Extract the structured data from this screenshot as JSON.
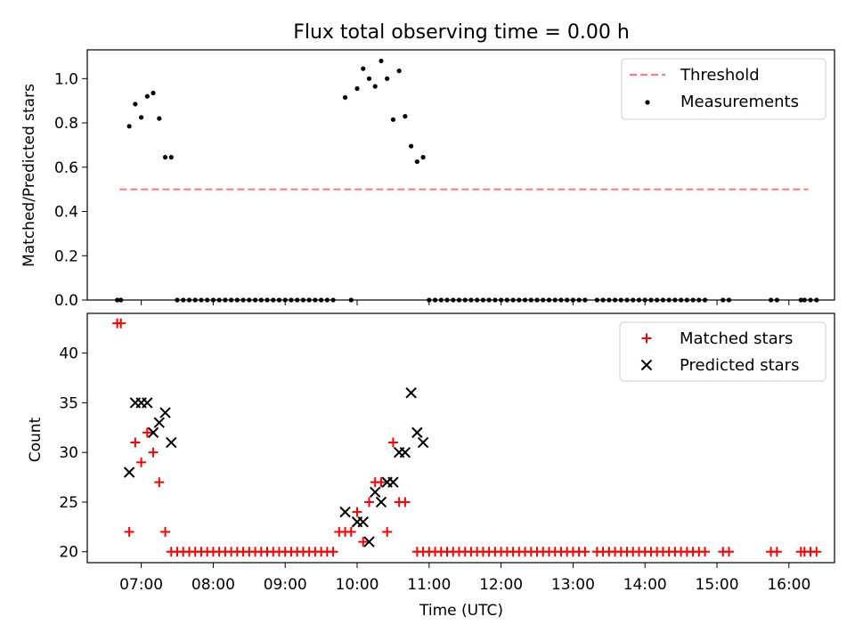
{
  "figure": {
    "title": "Flux total observing time = 0.00 h"
  },
  "colors": {
    "matched": "#ff0000",
    "predicted": "#000000",
    "threshold": "#ff7f7f",
    "measurements": "#000000"
  },
  "chart_data": [
    {
      "type": "scatter",
      "title": "Flux total observing time = 0.00 h",
      "xlabel": "",
      "ylabel": "Matched/Predicted stars",
      "ylim": [
        0.0,
        1.13
      ],
      "yticks": [
        0.0,
        0.2,
        0.4,
        0.6,
        0.8,
        1.0
      ],
      "yticklabels": [
        "0.0",
        "0.2",
        "0.4",
        "0.6",
        "0.8",
        "1.0"
      ],
      "xtick_labels_shown": false,
      "legend": {
        "placement": "top-right",
        "entries": [
          "Threshold",
          "Measurements"
        ]
      },
      "series": [
        {
          "name": "Threshold",
          "kind": "dashed-line",
          "x_start": "06:42",
          "x_end": "16:16",
          "value": 0.5
        },
        {
          "name": "Measurements",
          "kind": "dots",
          "points": [
            [
              "06:40",
              0
            ],
            [
              "06:43",
              0
            ],
            [
              "06:50",
              0.785
            ],
            [
              "06:55",
              0.885
            ],
            [
              "07:00",
              0.825
            ],
            [
              "07:05",
              0.92
            ],
            [
              "07:10",
              0.935
            ],
            [
              "07:15",
              0.82
            ],
            [
              "07:20",
              0.645
            ],
            [
              "07:25",
              0.645
            ],
            [
              "07:30",
              0
            ],
            [
              "07:35",
              0
            ],
            [
              "07:40",
              0
            ],
            [
              "07:45",
              0
            ],
            [
              "07:50",
              0
            ],
            [
              "07:55",
              0
            ],
            [
              "08:00",
              0
            ],
            [
              "08:05",
              0
            ],
            [
              "08:10",
              0
            ],
            [
              "08:15",
              0
            ],
            [
              "08:20",
              0
            ],
            [
              "08:25",
              0
            ],
            [
              "08:30",
              0
            ],
            [
              "08:35",
              0
            ],
            [
              "08:40",
              0
            ],
            [
              "08:45",
              0
            ],
            [
              "08:50",
              0
            ],
            [
              "08:55",
              0
            ],
            [
              "09:00",
              0
            ],
            [
              "09:05",
              0
            ],
            [
              "09:10",
              0
            ],
            [
              "09:15",
              0
            ],
            [
              "09:20",
              0
            ],
            [
              "09:25",
              0
            ],
            [
              "09:30",
              0
            ],
            [
              "09:35",
              0
            ],
            [
              "09:40",
              0
            ],
            [
              "09:50",
              0.915
            ],
            [
              "09:55",
              0
            ],
            [
              "10:00",
              0.955
            ],
            [
              "10:05",
              1.045
            ],
            [
              "10:10",
              1.0
            ],
            [
              "10:15",
              0.965
            ],
            [
              "10:20",
              1.08
            ],
            [
              "10:25",
              1.0
            ],
            [
              "10:30",
              0.815
            ],
            [
              "10:35",
              1.035
            ],
            [
              "10:40",
              0.83
            ],
            [
              "10:45",
              0.695
            ],
            [
              "10:50",
              0.625
            ],
            [
              "10:55",
              0.645
            ],
            [
              "11:00",
              0
            ],
            [
              "11:05",
              0
            ],
            [
              "11:10",
              0
            ],
            [
              "11:15",
              0
            ],
            [
              "11:20",
              0
            ],
            [
              "11:25",
              0
            ],
            [
              "11:30",
              0
            ],
            [
              "11:35",
              0
            ],
            [
              "11:40",
              0
            ],
            [
              "11:45",
              0
            ],
            [
              "11:50",
              0
            ],
            [
              "11:55",
              0
            ],
            [
              "12:00",
              0
            ],
            [
              "12:05",
              0
            ],
            [
              "12:10",
              0
            ],
            [
              "12:15",
              0
            ],
            [
              "12:20",
              0
            ],
            [
              "12:25",
              0
            ],
            [
              "12:30",
              0
            ],
            [
              "12:35",
              0
            ],
            [
              "12:40",
              0
            ],
            [
              "12:45",
              0
            ],
            [
              "12:50",
              0
            ],
            [
              "12:55",
              0
            ],
            [
              "13:00",
              0
            ],
            [
              "13:05",
              0
            ],
            [
              "13:10",
              0
            ],
            [
              "13:20",
              0
            ],
            [
              "13:25",
              0
            ],
            [
              "13:30",
              0
            ],
            [
              "13:35",
              0
            ],
            [
              "13:40",
              0
            ],
            [
              "13:45",
              0
            ],
            [
              "13:50",
              0
            ],
            [
              "13:55",
              0
            ],
            [
              "14:00",
              0
            ],
            [
              "14:05",
              0
            ],
            [
              "14:10",
              0
            ],
            [
              "14:15",
              0
            ],
            [
              "14:20",
              0
            ],
            [
              "14:25",
              0
            ],
            [
              "14:30",
              0
            ],
            [
              "14:35",
              0
            ],
            [
              "14:40",
              0
            ],
            [
              "14:45",
              0
            ],
            [
              "14:50",
              0
            ],
            [
              "15:05",
              0
            ],
            [
              "15:10",
              0
            ],
            [
              "15:45",
              0
            ],
            [
              "15:50",
              0
            ],
            [
              "16:10",
              0
            ],
            [
              "16:13",
              0
            ],
            [
              "16:18",
              0
            ],
            [
              "16:23",
              0
            ]
          ]
        }
      ]
    },
    {
      "type": "scatter",
      "title": "",
      "xlabel": "Time (UTC)",
      "ylabel": "Count",
      "xlim": [
        "06:15",
        "16:38"
      ],
      "ylim": [
        18.9,
        44.0
      ],
      "yticks": [
        20,
        25,
        30,
        35,
        40
      ],
      "yticklabels": [
        "20",
        "25",
        "30",
        "35",
        "40"
      ],
      "xticks": [
        "07:00",
        "08:00",
        "09:00",
        "10:00",
        "11:00",
        "12:00",
        "13:00",
        "14:00",
        "15:00",
        "16:00"
      ],
      "legend": {
        "placement": "top-right",
        "entries": [
          "Matched stars",
          "Predicted stars"
        ]
      },
      "series": [
        {
          "name": "Matched stars",
          "marker": "+",
          "points": [
            [
              "06:40",
              43
            ],
            [
              "06:43",
              43
            ],
            [
              "06:50",
              22
            ],
            [
              "06:55",
              31
            ],
            [
              "07:00",
              29
            ],
            [
              "07:05",
              32
            ],
            [
              "07:10",
              30
            ],
            [
              "07:15",
              27
            ],
            [
              "07:20",
              22
            ],
            [
              "07:25",
              20
            ],
            [
              "07:30",
              20
            ],
            [
              "07:35",
              20
            ],
            [
              "07:40",
              20
            ],
            [
              "07:45",
              20
            ],
            [
              "07:50",
              20
            ],
            [
              "07:55",
              20
            ],
            [
              "08:00",
              20
            ],
            [
              "08:05",
              20
            ],
            [
              "08:10",
              20
            ],
            [
              "08:15",
              20
            ],
            [
              "08:20",
              20
            ],
            [
              "08:25",
              20
            ],
            [
              "08:30",
              20
            ],
            [
              "08:35",
              20
            ],
            [
              "08:40",
              20
            ],
            [
              "08:45",
              20
            ],
            [
              "08:50",
              20
            ],
            [
              "08:55",
              20
            ],
            [
              "09:00",
              20
            ],
            [
              "09:05",
              20
            ],
            [
              "09:10",
              20
            ],
            [
              "09:15",
              20
            ],
            [
              "09:20",
              20
            ],
            [
              "09:25",
              20
            ],
            [
              "09:30",
              20
            ],
            [
              "09:35",
              20
            ],
            [
              "09:40",
              20
            ],
            [
              "09:45",
              22
            ],
            [
              "09:50",
              22
            ],
            [
              "09:55",
              22
            ],
            [
              "10:00",
              24
            ],
            [
              "10:05",
              21
            ],
            [
              "10:10",
              25
            ],
            [
              "10:15",
              27
            ],
            [
              "10:20",
              27
            ],
            [
              "10:25",
              22
            ],
            [
              "10:30",
              31
            ],
            [
              "10:35",
              25
            ],
            [
              "10:40",
              25
            ],
            [
              "10:50",
              20
            ],
            [
              "10:55",
              20
            ],
            [
              "11:00",
              20
            ],
            [
              "11:05",
              20
            ],
            [
              "11:10",
              20
            ],
            [
              "11:15",
              20
            ],
            [
              "11:20",
              20
            ],
            [
              "11:25",
              20
            ],
            [
              "11:30",
              20
            ],
            [
              "11:35",
              20
            ],
            [
              "11:40",
              20
            ],
            [
              "11:45",
              20
            ],
            [
              "11:50",
              20
            ],
            [
              "11:55",
              20
            ],
            [
              "12:00",
              20
            ],
            [
              "12:05",
              20
            ],
            [
              "12:10",
              20
            ],
            [
              "12:15",
              20
            ],
            [
              "12:20",
              20
            ],
            [
              "12:25",
              20
            ],
            [
              "12:30",
              20
            ],
            [
              "12:35",
              20
            ],
            [
              "12:40",
              20
            ],
            [
              "12:45",
              20
            ],
            [
              "12:50",
              20
            ],
            [
              "12:55",
              20
            ],
            [
              "13:00",
              20
            ],
            [
              "13:05",
              20
            ],
            [
              "13:10",
              20
            ],
            [
              "13:20",
              20
            ],
            [
              "13:25",
              20
            ],
            [
              "13:30",
              20
            ],
            [
              "13:35",
              20
            ],
            [
              "13:40",
              20
            ],
            [
              "13:45",
              20
            ],
            [
              "13:50",
              20
            ],
            [
              "13:55",
              20
            ],
            [
              "14:00",
              20
            ],
            [
              "14:05",
              20
            ],
            [
              "14:10",
              20
            ],
            [
              "14:15",
              20
            ],
            [
              "14:20",
              20
            ],
            [
              "14:25",
              20
            ],
            [
              "14:30",
              20
            ],
            [
              "14:35",
              20
            ],
            [
              "14:40",
              20
            ],
            [
              "14:45",
              20
            ],
            [
              "14:50",
              20
            ],
            [
              "15:05",
              20
            ],
            [
              "15:10",
              20
            ],
            [
              "15:45",
              20
            ],
            [
              "15:50",
              20
            ],
            [
              "16:10",
              20
            ],
            [
              "16:13",
              20
            ],
            [
              "16:18",
              20
            ],
            [
              "16:23",
              20
            ]
          ]
        },
        {
          "name": "Predicted stars",
          "marker": "x",
          "points": [
            [
              "06:50",
              28
            ],
            [
              "06:55",
              35
            ],
            [
              "07:00",
              35
            ],
            [
              "07:05",
              35
            ],
            [
              "07:10",
              32
            ],
            [
              "07:15",
              33
            ],
            [
              "07:20",
              34
            ],
            [
              "07:25",
              31
            ],
            [
              "09:50",
              24
            ],
            [
              "10:00",
              23
            ],
            [
              "10:05",
              23
            ],
            [
              "10:10",
              21
            ],
            [
              "10:15",
              26
            ],
            [
              "10:20",
              25
            ],
            [
              "10:25",
              27
            ],
            [
              "10:30",
              27
            ],
            [
              "10:35",
              30
            ],
            [
              "10:40",
              30
            ],
            [
              "10:45",
              36
            ],
            [
              "10:50",
              32
            ],
            [
              "10:55",
              31
            ]
          ]
        }
      ]
    }
  ]
}
